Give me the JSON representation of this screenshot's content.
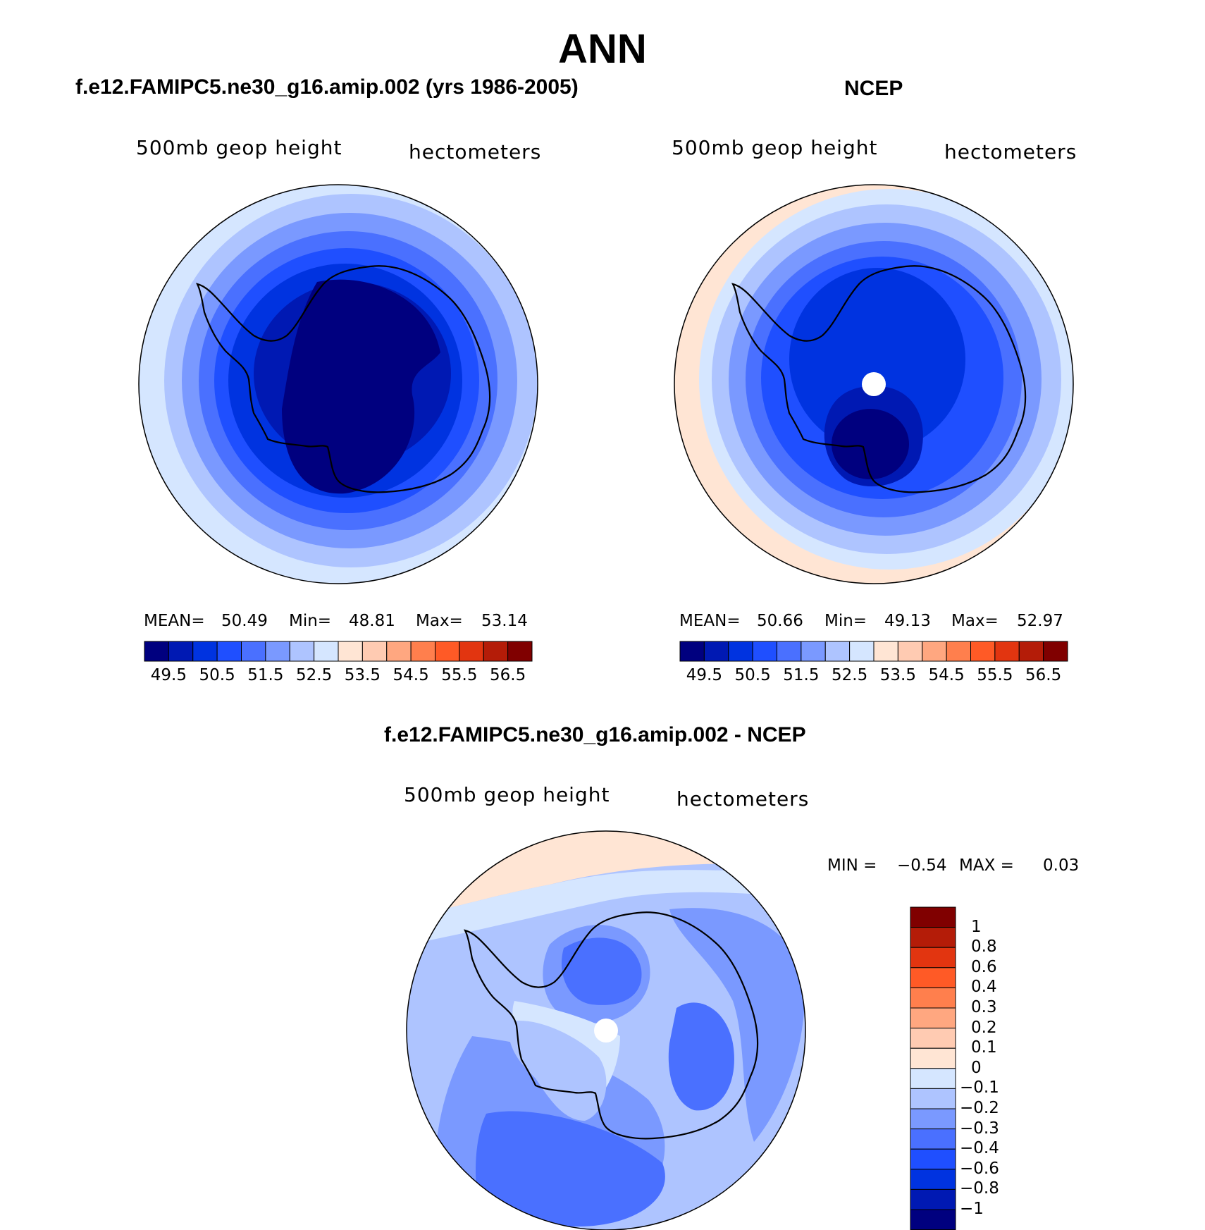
{
  "figure": {
    "title": "ANN"
  },
  "panels": [
    {
      "case_title": "f.e12.FAMIPC5.ne30_g16.amip.002 (yrs 1986-2005)",
      "variable": "500mb geop height",
      "units": "hectometers",
      "stats": {
        "mean_label": "MEAN=",
        "mean": "50.49",
        "min_label": "Min=",
        "min": "48.81",
        "max_label": "Max=",
        "max": "53.14"
      }
    },
    {
      "case_title": "NCEP",
      "variable": "500mb geop height",
      "units": "hectometers",
      "stats": {
        "mean_label": "MEAN=",
        "mean": "50.66",
        "min_label": "Min=",
        "min": "49.13",
        "max_label": "Max=",
        "max": "52.97"
      }
    },
    {
      "case_title": "f.e12.FAMIPC5.ne30_g16.amip.002 - NCEP",
      "variable": "500mb geop height",
      "units": "hectometers",
      "stats": {
        "min_label": "MIN =",
        "min": "−0.54",
        "max_label": "MAX =",
        "max": "0.03"
      }
    }
  ],
  "colorbars": {
    "absolute": {
      "colors": [
        "#00007f",
        "#0019b3",
        "#0033e0",
        "#1f4fff",
        "#4a70ff",
        "#7a99ff",
        "#aec4ff",
        "#d5e6ff",
        "#ffe5d4",
        "#ffcbb2",
        "#ffa780",
        "#ff7f4d",
        "#ff5a26",
        "#e23510",
        "#b41c08",
        "#800000"
      ],
      "tick_labels": [
        "49.5",
        "50.5",
        "51.5",
        "52.5",
        "53.5",
        "54.5",
        "55.5",
        "56.5"
      ]
    },
    "difference": {
      "colors_top_to_bottom": [
        "#800000",
        "#b41c08",
        "#e23510",
        "#ff5a26",
        "#ff7f4d",
        "#ffa780",
        "#ffcbb2",
        "#ffe5d4",
        "#d5e6ff",
        "#aec4ff",
        "#7a99ff",
        "#4a70ff",
        "#1f4fff",
        "#0033e0",
        "#0019b3",
        "#00007f"
      ],
      "tick_labels": [
        "1",
        "0.8",
        "0.6",
        "0.4",
        "0.3",
        "0.2",
        "0.1",
        "0",
        "−0.1",
        "−0.2",
        "−0.3",
        "−0.4",
        "−0.6",
        "−0.8",
        "−1"
      ]
    }
  },
  "map_fill": {
    "land_outline": "Antarctica coastline",
    "model_rings": [
      "#d5e6ff",
      "#aec4ff",
      "#7a99ff",
      "#4a70ff",
      "#1f4fff",
      "#0033e0",
      "#0019b3",
      "#00007f"
    ],
    "obs_rings": [
      "#ffe5d4",
      "#d5e6ff",
      "#aec4ff",
      "#7a99ff",
      "#4a70ff",
      "#1f4fff",
      "#0033e0",
      "#0019b3",
      "#00007f"
    ],
    "diff_palette": [
      "#ffe5d4",
      "#d5e6ff",
      "#aec4ff",
      "#7a99ff",
      "#4a70ff",
      "#1f4fff",
      "#0033e0"
    ]
  }
}
